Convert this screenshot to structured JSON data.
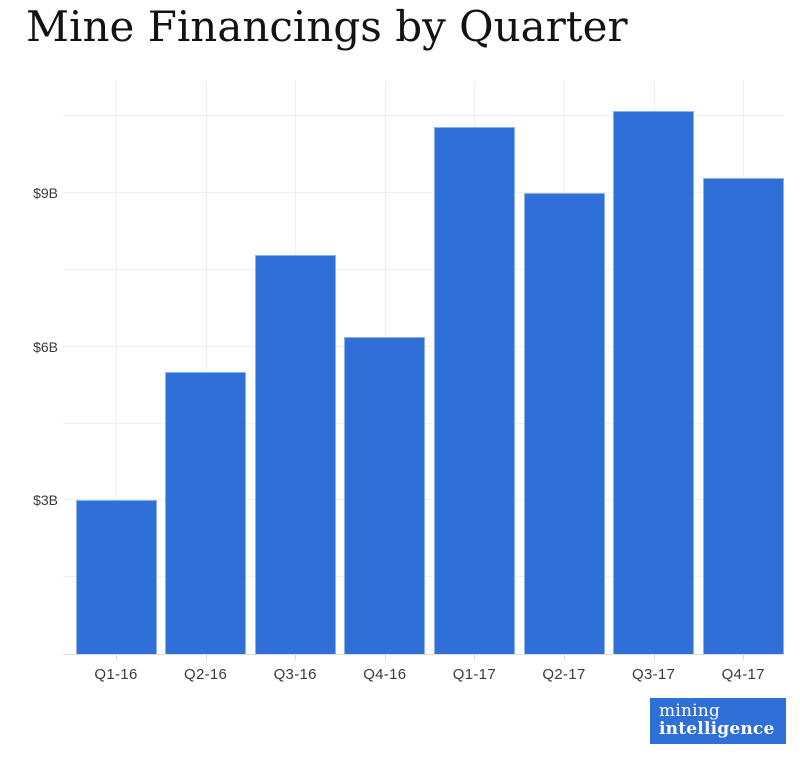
{
  "title": "Mine Financings by Quarter",
  "chart_data": {
    "type": "bar",
    "title": "Mine Financings by Quarter",
    "categories": [
      "Q1-16",
      "Q2-16",
      "Q3-16",
      "Q4-16",
      "Q1-17",
      "Q2-17",
      "Q3-17",
      "Q4-17"
    ],
    "values": [
      3.0,
      5.5,
      7.8,
      6.2,
      10.3,
      9.0,
      10.6,
      9.3
    ],
    "unit": "billions USD",
    "xlabel": "",
    "ylabel": "",
    "ylim": [
      0,
      11.19
    ],
    "y_tick_labels": [
      {
        "value": 3,
        "label": "$3B"
      },
      {
        "value": 6,
        "label": "$6B"
      },
      {
        "value": 9,
        "label": "$9B"
      }
    ],
    "y_gridlines": [
      1.5,
      3,
      4.5,
      6,
      7.5,
      9,
      10.5
    ],
    "grid": "on",
    "legend": "none",
    "bar_color": "#2e6fd8"
  },
  "colors": {
    "accent_blue": "#2e6fd8",
    "title_text": "#131313",
    "axis_text": "#3a3a3a",
    "gridline": "#efefef",
    "axis_line": "#dedede",
    "background": "#ffffff"
  },
  "logo": {
    "line1": "mining",
    "line2": "intelligence",
    "bg": "#2e6fd8",
    "text_color": "#ffffff"
  }
}
